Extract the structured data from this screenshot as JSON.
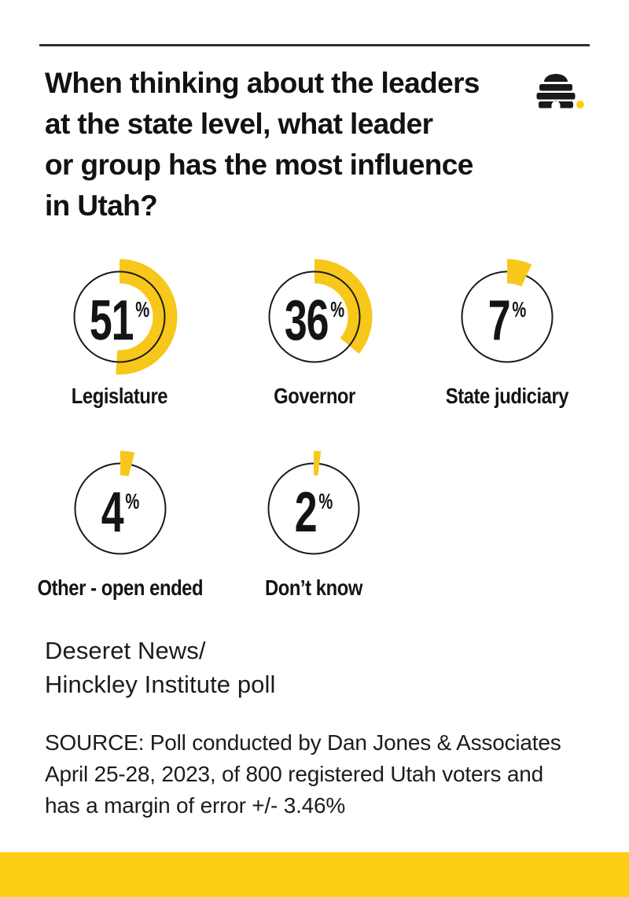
{
  "page": {
    "background": "#ffffff",
    "ink_color": "#1a1a1a",
    "accent_yellow": "#F8C71B",
    "footer_yellow": "#FDCE14"
  },
  "header": {
    "title_lines": [
      "When thinking about the leaders",
      "at the state level, what leader",
      "or group has the most influence",
      "in Utah?"
    ],
    "logo_name": "deseret-news-beehive-logo"
  },
  "chart_data": {
    "type": "pie",
    "subtype": "percent-ring-grid",
    "title": "When thinking about the leaders at the state level, what leader or group has the most influence in Utah?",
    "unit": "%",
    "categories": [
      "Legislature",
      "Governor",
      "State judiciary",
      "Other - open ended",
      "Don’t know"
    ],
    "values": [
      51,
      36,
      7,
      4,
      2
    ],
    "arc_start": "top (12 o'clock)",
    "arc_direction": "clockwise",
    "arc_color": "#F8C71B",
    "ring_color": "#1a1a1a",
    "items": [
      {
        "label": "Legislature",
        "value": 51,
        "percent_sign": "%",
        "arc_on_top": false
      },
      {
        "label": "Governor",
        "value": 36,
        "percent_sign": "%",
        "arc_on_top": false
      },
      {
        "label": "State judiciary",
        "value": 7,
        "percent_sign": "%",
        "arc_on_top": true
      },
      {
        "label": "Other - open ended",
        "value": 4,
        "percent_sign": "%",
        "arc_on_top": true
      },
      {
        "label": "Don’t know",
        "value": 2,
        "percent_sign": "%",
        "arc_on_top": true
      }
    ]
  },
  "attribution": {
    "lines": [
      "Deseret News/",
      "Hinckley Institute poll"
    ]
  },
  "source": {
    "lines": [
      "SOURCE: Poll conducted by Dan Jones & Associates",
      "April 25-28, 2023, of 800 registered Utah voters and",
      "has a margin of error +/- 3.46%"
    ]
  }
}
